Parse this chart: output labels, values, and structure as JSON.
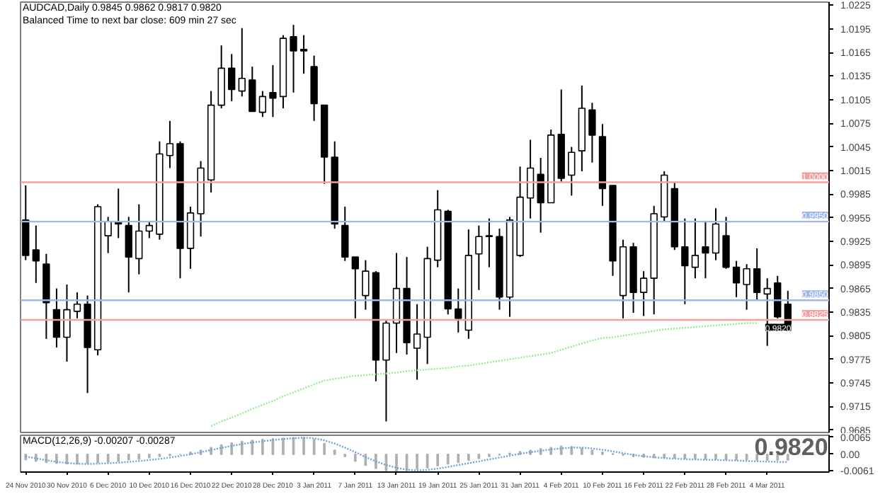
{
  "chart_data": [
    {
      "type": "candlestick",
      "title": "AUDCAD,Daily  0.9845 0.9862 0.9817 0.9820",
      "subtitle": "Balanced Time to next bar close: 609 min 27 sec",
      "categories": [
        null,
        null,
        null,
        null,
        null,
        null,
        null,
        null,
        null,
        null,
        null,
        null,
        null,
        null,
        null,
        null,
        null,
        null,
        null,
        null,
        null,
        null,
        null,
        null,
        null,
        null,
        null,
        null,
        null,
        null,
        null,
        null,
        null,
        null,
        null,
        null,
        null,
        null,
        null,
        null,
        null,
        null,
        null,
        null,
        null,
        null,
        null,
        null,
        null,
        null,
        null,
        null,
        null,
        null,
        null,
        null,
        null,
        null,
        null,
        null,
        null,
        null,
        null,
        null,
        null,
        null,
        null,
        null,
        null,
        null,
        null,
        null,
        null,
        null,
        null
      ],
      "ohlc": [
        [
          0.9952,
          0.9996,
          0.9901,
          0.9907
        ],
        [
          0.9914,
          0.9945,
          0.9872,
          0.99
        ],
        [
          0.9896,
          0.9909,
          0.9801,
          0.9847
        ],
        [
          0.9838,
          0.9865,
          0.979,
          0.9803
        ],
        [
          0.9803,
          0.987,
          0.9772,
          0.9838
        ],
        [
          0.9836,
          0.986,
          0.9827,
          0.9845
        ],
        [
          0.9845,
          0.9856,
          0.9732,
          0.979
        ],
        [
          0.9787,
          0.9972,
          0.978,
          0.9969
        ],
        [
          0.9932,
          0.9956,
          0.991,
          0.995
        ],
        [
          0.9949,
          0.9992,
          0.9929,
          0.9947
        ],
        [
          0.9945,
          0.9956,
          0.986,
          0.9905
        ],
        [
          0.9903,
          0.9972,
          0.9883,
          0.9938
        ],
        [
          0.9938,
          0.995,
          0.9929,
          0.9945
        ],
        [
          0.9934,
          1.0052,
          0.9927,
          1.0036
        ],
        [
          1.0034,
          1.0078,
          1.0018,
          1.0049
        ],
        [
          1.0049,
          1.0052,
          0.9878,
          0.9916
        ],
        [
          0.9916,
          0.9969,
          0.989,
          0.9961
        ],
        [
          0.996,
          1.0027,
          0.9931,
          1.0018
        ],
        [
          1.0003,
          1.0116,
          0.9987,
          1.0098
        ],
        [
          1.0098,
          1.0174,
          1.0094,
          1.0145
        ],
        [
          1.0145,
          1.0163,
          1.0103,
          1.0118
        ],
        [
          1.0116,
          1.0196,
          1.0109,
          1.0132
        ],
        [
          1.013,
          1.0147,
          1.009,
          1.009
        ],
        [
          1.0089,
          1.0116,
          1.0083,
          1.0109
        ],
        [
          1.0114,
          1.0149,
          1.0083,
          1.0107
        ],
        [
          1.0109,
          1.0187,
          1.0094,
          1.0183
        ],
        [
          1.0185,
          1.02,
          1.0114,
          1.0167
        ],
        [
          1.0169,
          1.0187,
          1.0138,
          1.0167
        ],
        [
          1.0147,
          1.0161,
          1.0078,
          1.01
        ],
        [
          1.0098,
          1.0098,
          0.9998,
          1.0032
        ],
        [
          1.0032,
          1.0052,
          0.9941,
          0.9947
        ],
        [
          0.9945,
          0.9969,
          0.99,
          0.9905
        ],
        [
          0.9905,
          0.9905,
          0.9827,
          0.989
        ],
        [
          0.9856,
          0.9901,
          0.9838,
          0.9887
        ],
        [
          0.9885,
          0.9887,
          0.9747,
          0.9774
        ],
        [
          0.9774,
          0.9825,
          0.9696,
          0.9821
        ],
        [
          0.9821,
          0.991,
          0.9783,
          0.9865
        ],
        [
          0.9865,
          0.9905,
          0.9781,
          0.9796
        ],
        [
          0.9789,
          0.9845,
          0.9749,
          0.9807
        ],
        [
          0.9803,
          0.9918,
          0.9769,
          0.9903
        ],
        [
          0.9901,
          0.999,
          0.9892,
          0.9965
        ],
        [
          0.9963,
          0.9965,
          0.9832,
          0.9839
        ],
        [
          0.9839,
          0.9865,
          0.9809,
          0.9827
        ],
        [
          0.9812,
          0.994,
          0.9801,
          0.9907
        ],
        [
          0.9909,
          0.9945,
          0.9863,
          0.9931
        ],
        [
          0.9932,
          0.9954,
          0.9892,
          0.9931
        ],
        [
          0.9931,
          0.9941,
          0.9838,
          0.9854
        ],
        [
          0.9854,
          0.9956,
          0.9829,
          0.9952
        ],
        [
          0.9907,
          1.002,
          0.9905,
          0.9981
        ],
        [
          0.998,
          1.0054,
          0.9954,
          1.0018
        ],
        [
          1.001,
          1.0031,
          0.9936,
          0.9974
        ],
        [
          0.9974,
          1.0067,
          0.9974,
          1.006
        ],
        [
          1.0061,
          1.0118,
          1.0,
          1.0005
        ],
        [
          1.0009,
          1.0045,
          0.9983,
          1.0038
        ],
        [
          1.004,
          1.0123,
          1.0014,
          1.0094
        ],
        [
          1.0092,
          1.0101,
          1.0025,
          1.006
        ],
        [
          1.0058,
          1.0074,
          0.997,
          0.9992
        ],
        [
          0.9996,
          0.9996,
          0.9881,
          0.99
        ],
        [
          0.9856,
          0.9927,
          0.9827,
          0.9918
        ],
        [
          0.9918,
          0.9923,
          0.9834,
          0.986
        ],
        [
          0.986,
          0.9887,
          0.983,
          0.9878
        ],
        [
          0.9878,
          0.997,
          0.9832,
          0.996
        ],
        [
          0.9956,
          1.0014,
          0.995,
          1.0009
        ],
        [
          0.9992,
          1.0,
          0.9914,
          0.9918
        ],
        [
          0.9918,
          0.9954,
          0.9845,
          0.9894
        ],
        [
          0.9892,
          0.9954,
          0.9878,
          0.9907
        ],
        [
          0.9918,
          0.995,
          0.9878,
          0.991
        ],
        [
          0.991,
          0.9967,
          0.9901,
          0.9947
        ],
        [
          0.9932,
          0.9956,
          0.989,
          0.9892
        ],
        [
          0.9892,
          0.99,
          0.9854,
          0.9872
        ],
        [
          0.987,
          0.9896,
          0.9838,
          0.989
        ],
        [
          0.989,
          0.9916,
          0.985,
          0.986
        ],
        [
          0.9858,
          0.9878,
          0.9792,
          0.9865
        ],
        [
          0.9872,
          0.9881,
          0.9827,
          0.9829
        ],
        [
          0.9845,
          0.9862,
          0.9817,
          0.982
        ]
      ],
      "series": [
        {
          "type": "line",
          "color": "#90ee90",
          "line_style": "dotted",
          "values": [
            null,
            null,
            null,
            null,
            null,
            null,
            null,
            null,
            null,
            null,
            null,
            null,
            null,
            null,
            null,
            null,
            null,
            null,
            0.969,
            0.9696,
            0.9701,
            0.9706,
            0.9712,
            0.9717,
            0.9722,
            0.9728,
            0.9733,
            0.9738,
            0.9743,
            0.9748,
            0.975,
            0.9752,
            0.9754,
            0.9755,
            0.9756,
            0.9757,
            0.9758,
            0.976,
            0.9761,
            0.9762,
            0.9763,
            0.9764,
            0.9766,
            0.9767,
            0.9769,
            0.9771,
            0.9773,
            0.9775,
            0.9777,
            0.9779,
            0.9781,
            0.9783,
            0.9787,
            0.9791,
            0.9795,
            0.9799,
            0.9802,
            0.9803,
            0.9805,
            0.9807,
            0.9809,
            0.9811,
            0.9813,
            0.9814,
            0.9815,
            0.9816,
            0.9817,
            0.9818,
            0.9819,
            0.982,
            0.9821,
            0.9821,
            null,
            null,
            null
          ]
        }
      ],
      "ylim": [
        0.9682,
        1.0229
      ],
      "yticks": [
        1.0225,
        1.0195,
        1.0165,
        1.0135,
        1.0105,
        1.0075,
        1.0045,
        1.0015,
        0.9985,
        0.9955,
        0.9925,
        0.9895,
        0.9865,
        0.9835,
        0.9805,
        0.9775,
        0.9745,
        0.9715,
        0.9685
      ],
      "ref_lines": [
        {
          "axis": "y",
          "value": 1.0,
          "label": "1.0000",
          "color": "#f4a0a0"
        },
        {
          "axis": "y",
          "value": 0.995,
          "label": "0.9950",
          "color": "#9fb8e8"
        },
        {
          "axis": "y",
          "value": 0.985,
          "label": "0.9850",
          "color": "#9fb8e8"
        },
        {
          "axis": "y",
          "value": 0.9825,
          "label": "0.9825",
          "color": "#f4a0a0"
        }
      ],
      "annotations": [
        {
          "text": "0.9820",
          "y": 0.982
        }
      ],
      "tick_labels": "y"
    },
    {
      "type": "bar",
      "title": "MACD(12,26,9) -0.00207 -0.00287",
      "categories": [
        "24 Nov 2010",
        null,
        null,
        null,
        "30 Nov 2010",
        null,
        null,
        null,
        "6 Dec 2010",
        null,
        null,
        null,
        "10 Dec 2010",
        null,
        null,
        null,
        "16 Dec 2010",
        null,
        null,
        null,
        "22 Dec 2010",
        null,
        null,
        null,
        "28 Dec 2010",
        null,
        null,
        null,
        "3 Jan 2011",
        null,
        null,
        null,
        "7 Jan 2011",
        null,
        null,
        null,
        "13 Jan 2011",
        null,
        null,
        null,
        "19 Jan 2011",
        null,
        null,
        null,
        "25 Jan 2011",
        null,
        null,
        null,
        "31 Jan 2011",
        null,
        null,
        null,
        "4 Feb 2011",
        null,
        null,
        null,
        "10 Feb 2011",
        null,
        null,
        null,
        "16 Feb 2011",
        null,
        null,
        null,
        "22 Feb 2011",
        null,
        null,
        null,
        "28 Feb 2011",
        null,
        null,
        null,
        "4 Mar 2011",
        null,
        null
      ],
      "series": [
        {
          "type": "bar",
          "color": "#b0b0b0",
          "values": [
            -0.002,
            -0.0025,
            -0.003,
            -0.0033,
            -0.0035,
            -0.0035,
            -0.0034,
            -0.003,
            -0.0028,
            -0.0025,
            -0.002,
            -0.0018,
            -0.0012,
            -0.0008,
            -0.0004,
            0.0,
            0.0008,
            0.0015,
            0.0025,
            0.0035,
            0.0042,
            0.0048,
            0.0052,
            0.0055,
            0.0058,
            0.006,
            0.0062,
            0.0062,
            0.0055,
            0.004,
            0.0015,
            -0.0008,
            -0.0025,
            -0.004,
            -0.0052,
            -0.006,
            -0.0062,
            -0.006,
            -0.0055,
            -0.005,
            -0.0042,
            -0.0035,
            -0.003,
            -0.0022,
            -0.0015,
            -0.0008,
            -0.0002,
            0.0004,
            0.001,
            0.0015,
            0.002,
            0.0025,
            0.003,
            0.0028,
            0.0022,
            0.0015,
            0.0008,
            0.0002,
            -0.0003,
            -0.0008,
            -0.001,
            -0.0012,
            -0.0012,
            -0.0013,
            -0.0015,
            -0.0016,
            -0.0017,
            -0.0018,
            -0.0019,
            -0.002,
            -0.002,
            -0.0021,
            -0.0021,
            -0.0021,
            -0.0021
          ]
        },
        {
          "type": "line",
          "color": "#6f9fdc",
          "line_style": "dotted",
          "values": [
            -0.0008,
            -0.0015,
            -0.0022,
            -0.0028,
            -0.0032,
            -0.0035,
            -0.0036,
            -0.0035,
            -0.0033,
            -0.0031,
            -0.0028,
            -0.0025,
            -0.0021,
            -0.0017,
            -0.0012,
            -0.0006,
            0.0,
            0.0008,
            0.0016,
            0.0024,
            0.0031,
            0.0038,
            0.0044,
            0.0049,
            0.0053,
            0.0057,
            0.006,
            0.0062,
            0.006,
            0.0052,
            0.004,
            0.0025,
            0.0008,
            -0.001,
            -0.0026,
            -0.004,
            -0.005,
            -0.0057,
            -0.006,
            -0.0058,
            -0.0053,
            -0.0047,
            -0.004,
            -0.0033,
            -0.0026,
            -0.0019,
            -0.0012,
            -0.0005,
            0.0002,
            0.0008,
            0.0013,
            0.0018,
            0.0022,
            0.0025,
            0.0025,
            0.0022,
            0.0017,
            0.0011,
            0.0004,
            -0.0002,
            -0.0007,
            -0.0011,
            -0.0014,
            -0.0016,
            -0.0018,
            -0.0019,
            -0.002,
            -0.0021,
            -0.0022,
            -0.0023,
            -0.0025,
            -0.0026,
            -0.0027,
            -0.0028,
            -0.0029
          ]
        }
      ],
      "ylim": [
        -0.0066,
        0.0071
      ],
      "yticks": [
        0.0065,
        {
          "value": 0,
          "label": "0.00"
        },
        -0.0061
      ],
      "annotations": [
        "0.9820"
      ]
    }
  ]
}
